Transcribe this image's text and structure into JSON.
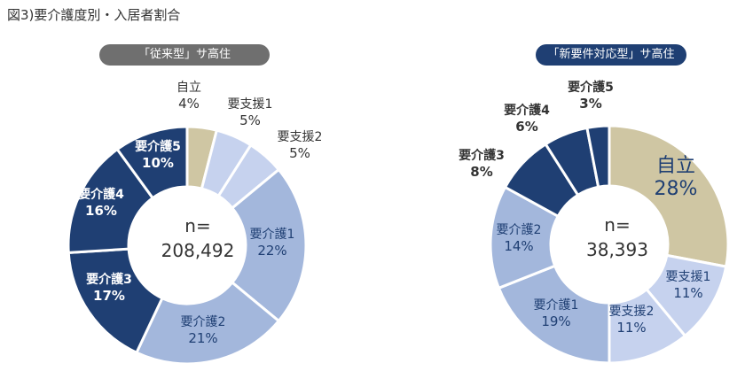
{
  "figure_title": "図3)要介護度別・入居者割合",
  "colors": {
    "自立": "#cfc6a3",
    "要支援1": "#c6d2ee",
    "要支援2": "#c6d2ee",
    "要介護1": "#a3b7dc",
    "要介護2": "#a3b7dc",
    "要介護3": "#1f3f73",
    "要介護4": "#1f3f73",
    "要介護5": "#1f3f73",
    "label_light": "#ffffff",
    "label_dark": "#1f3f73",
    "label_outside": "#333333"
  },
  "chart_data": [
    {
      "type": "pie",
      "panel_title": "「従来型」サ高住",
      "center_label": "n=",
      "center_value": "208,492",
      "categories": [
        "自立",
        "要支援1",
        "要支援2",
        "要介護1",
        "要介護2",
        "要介護3",
        "要介護4",
        "要介護5"
      ],
      "values": [
        4,
        5,
        5,
        22,
        21,
        17,
        16,
        10
      ],
      "value_labels": [
        "4%",
        "5%",
        "5%",
        "22%",
        "21%",
        "17%",
        "16%",
        "10%"
      ]
    },
    {
      "type": "pie",
      "panel_title": "「新要件対応型」サ高住",
      "center_label": "n=",
      "center_value": "38,393",
      "categories": [
        "自立",
        "要支援1",
        "要支援2",
        "要介護1",
        "要介護2",
        "要介護3",
        "要介護4",
        "要介護5"
      ],
      "values": [
        28,
        11,
        11,
        19,
        14,
        8,
        6,
        3
      ],
      "value_labels": [
        "28%",
        "11%",
        "11%",
        "19%",
        "14%",
        "8%",
        "6%",
        "3%"
      ]
    }
  ]
}
